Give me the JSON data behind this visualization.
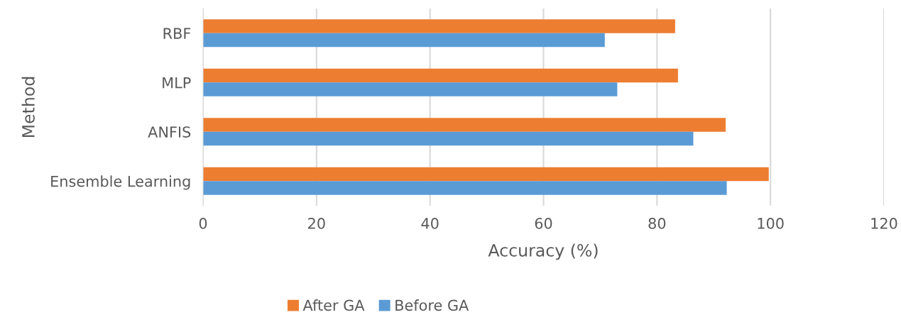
{
  "chart_data": {
    "type": "bar",
    "orientation": "horizontal",
    "xlabel": "Accuracy (%)",
    "ylabel": "Method",
    "categories": [
      "RBF",
      "MLP",
      "ANFIS",
      "Ensemble Learning"
    ],
    "series": [
      {
        "name": "After GA",
        "color": "#ed7d31",
        "values": [
          83.2,
          83.7,
          92.1,
          99.7
        ]
      },
      {
        "name": "Before GA",
        "color": "#5b9bd5",
        "values": [
          70.8,
          73.0,
          86.4,
          92.3
        ]
      }
    ],
    "xlim": [
      0,
      120
    ],
    "xticks": [
      0,
      20,
      40,
      60,
      80,
      100,
      120
    ],
    "grid": "x",
    "legend": "bottom"
  }
}
